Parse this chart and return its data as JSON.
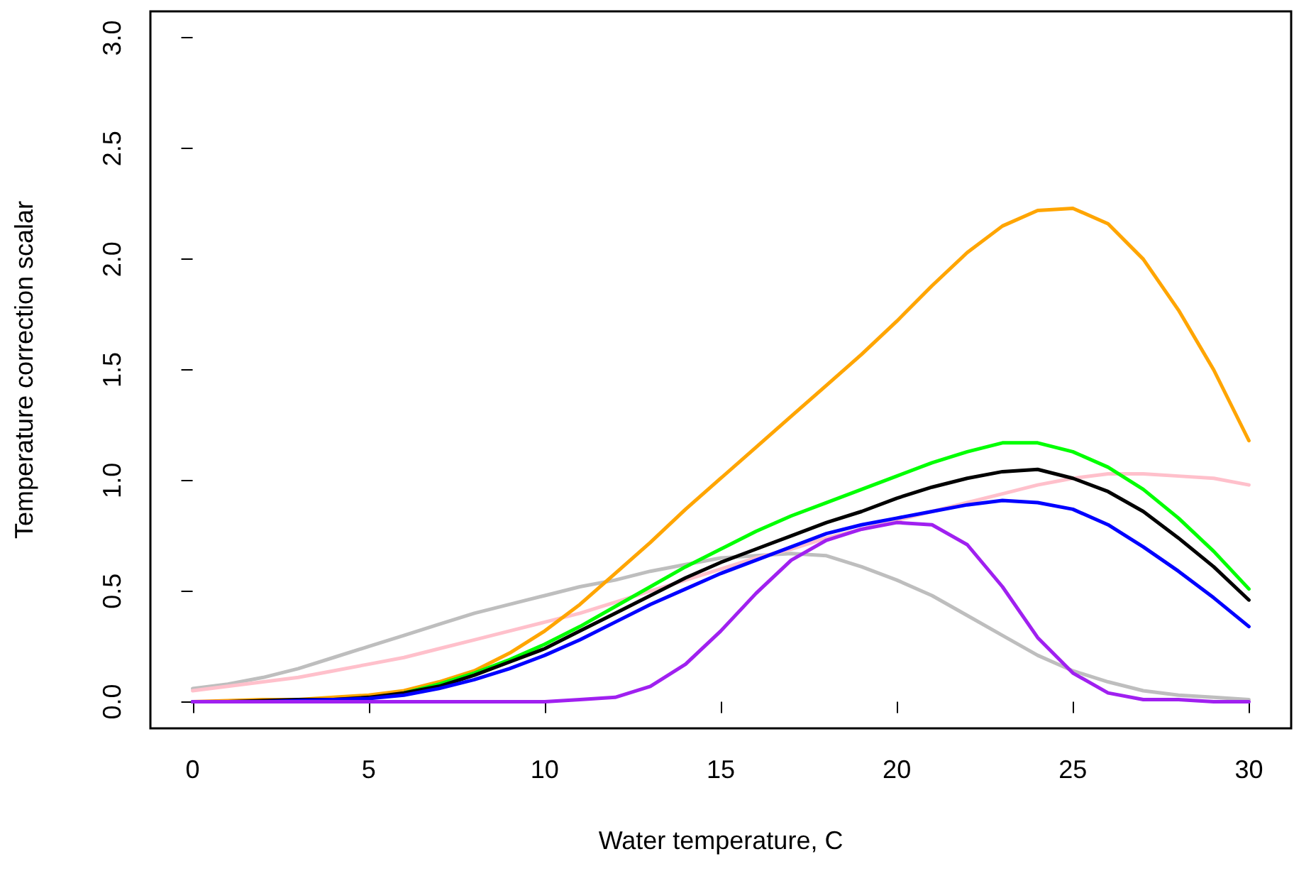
{
  "chart_data": {
    "type": "line",
    "xlabel": "Water temperature, C",
    "ylabel": "Temperature correction scalar",
    "x": [
      0,
      1,
      2,
      3,
      4,
      5,
      6,
      7,
      8,
      9,
      10,
      11,
      12,
      13,
      14,
      15,
      16,
      17,
      18,
      19,
      20,
      21,
      22,
      23,
      24,
      25,
      26,
      27,
      28,
      29,
      30
    ],
    "xlim": [
      -1.2,
      31.2
    ],
    "xticks": [
      0,
      5,
      10,
      15,
      20,
      25,
      30
    ],
    "ylim": [
      -0.12,
      3.12
    ],
    "yticks": [
      {
        "value": 0,
        "label": "0.0"
      },
      {
        "value": 0.5,
        "label": "0.5"
      },
      {
        "value": 1,
        "label": "1.0"
      },
      {
        "value": 1.5,
        "label": "1.5"
      },
      {
        "value": 2,
        "label": "2.0"
      },
      {
        "value": 2.5,
        "label": "2.5"
      },
      {
        "value": 3,
        "label": "3.0"
      }
    ],
    "grid": false,
    "marker": "none",
    "line_style": "solid",
    "series": [
      {
        "color": "#bebebe",
        "values": [
          0.06,
          0.08,
          0.11,
          0.15,
          0.2,
          0.25,
          0.3,
          0.35,
          0.4,
          0.44,
          0.48,
          0.52,
          0.55,
          0.59,
          0.62,
          0.65,
          0.66,
          0.67,
          0.66,
          0.61,
          0.55,
          0.48,
          0.39,
          0.3,
          0.21,
          0.14,
          0.09,
          0.05,
          0.03,
          0.02,
          0.01
        ]
      },
      {
        "color": "#ffc0cb",
        "values": [
          0.05,
          0.07,
          0.09,
          0.11,
          0.14,
          0.17,
          0.2,
          0.24,
          0.28,
          0.32,
          0.36,
          0.4,
          0.45,
          0.5,
          0.55,
          0.6,
          0.65,
          0.69,
          0.74,
          0.78,
          0.82,
          0.86,
          0.9,
          0.94,
          0.98,
          1.01,
          1.03,
          1.03,
          1.02,
          1.01,
          0.98
        ]
      },
      {
        "color": "#ffa500",
        "values": [
          0,
          0.005,
          0.01,
          0.01,
          0.02,
          0.03,
          0.05,
          0.09,
          0.14,
          0.22,
          0.32,
          0.44,
          0.58,
          0.72,
          0.87,
          1.01,
          1.15,
          1.29,
          1.43,
          1.57,
          1.72,
          1.88,
          2.03,
          2.15,
          2.22,
          2.23,
          2.16,
          2.0,
          1.77,
          1.5,
          1.18
        ]
      },
      {
        "color": "#00ff00",
        "values": [
          null,
          null,
          null,
          null,
          null,
          null,
          0.04,
          0.08,
          0.13,
          0.19,
          0.26,
          0.34,
          0.43,
          0.52,
          0.61,
          0.69,
          0.77,
          0.84,
          0.9,
          0.96,
          1.02,
          1.08,
          1.13,
          1.17,
          1.17,
          1.13,
          1.06,
          0.96,
          0.83,
          0.68,
          0.51
        ]
      },
      {
        "color": "#000000",
        "values": [
          0,
          0,
          0.005,
          0.01,
          0.01,
          0.02,
          0.04,
          0.07,
          0.12,
          0.18,
          0.24,
          0.32,
          0.4,
          0.48,
          0.56,
          0.63,
          0.69,
          0.75,
          0.81,
          0.86,
          0.92,
          0.97,
          1.01,
          1.04,
          1.05,
          1.01,
          0.95,
          0.86,
          0.74,
          0.61,
          0.46
        ]
      },
      {
        "color": "#0000ff",
        "values": [
          0,
          0,
          0,
          0.005,
          0.01,
          0.015,
          0.03,
          0.06,
          0.1,
          0.15,
          0.21,
          0.28,
          0.36,
          0.44,
          0.51,
          0.58,
          0.64,
          0.7,
          0.76,
          0.8,
          0.83,
          0.86,
          0.89,
          0.91,
          0.9,
          0.87,
          0.8,
          0.7,
          0.59,
          0.47,
          0.34
        ]
      },
      {
        "color": "#a020f0",
        "values": [
          0,
          0,
          0,
          0,
          0,
          0,
          0,
          0,
          0,
          0,
          0,
          0.01,
          0.02,
          0.07,
          0.17,
          0.32,
          0.49,
          0.64,
          0.73,
          0.78,
          0.81,
          0.8,
          0.71,
          0.52,
          0.29,
          0.13,
          0.04,
          0.01,
          0.01,
          0,
          0
        ]
      }
    ]
  }
}
